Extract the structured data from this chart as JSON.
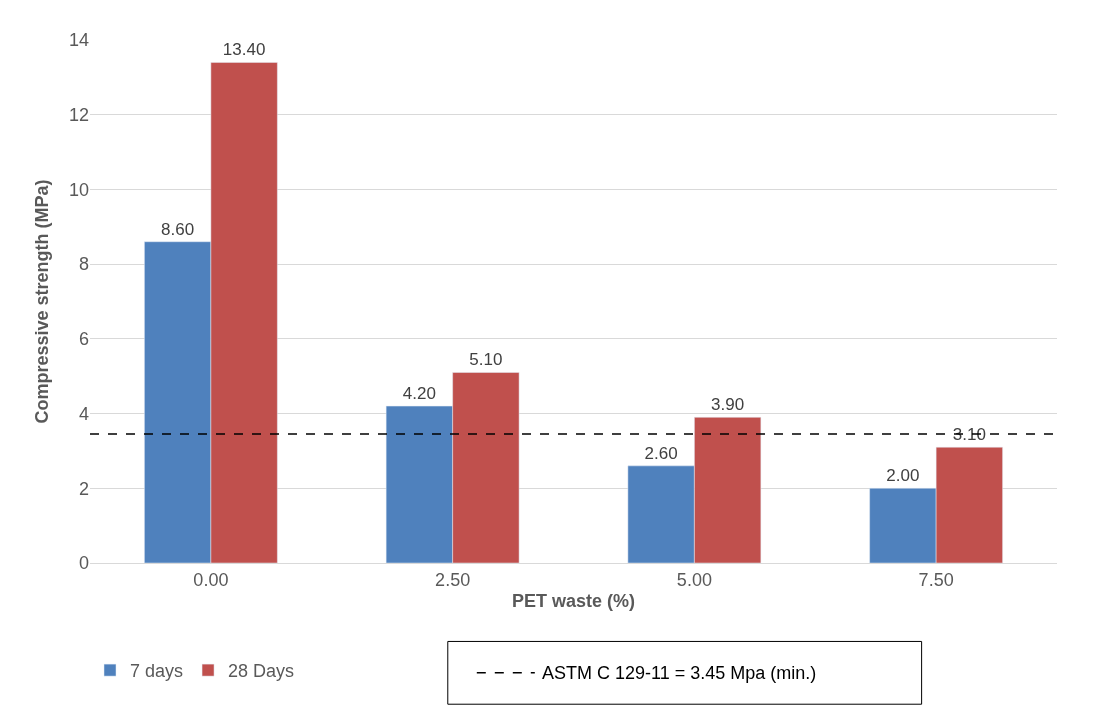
{
  "chart_data": {
    "type": "bar",
    "xlabel": "PET waste (%)",
    "ylabel": "Compressive strength (MPa)",
    "categories": [
      "0.00",
      "2.50",
      "5.00",
      "7.50"
    ],
    "series": [
      {
        "name": "7 days",
        "color": "#4f81bd",
        "values": [
          8.6,
          4.2,
          2.6,
          2.0
        ],
        "value_labels": [
          "8.60",
          "4.20",
          "2.60",
          "2.00"
        ]
      },
      {
        "name": "28 Days",
        "color": "#c0504d",
        "values": [
          13.4,
          5.1,
          3.9,
          3.1
        ],
        "value_labels": [
          "13.40",
          "5.10",
          "3.90",
          "3.10"
        ]
      }
    ],
    "ylim": [
      0,
      14
    ],
    "yticks": [
      0,
      2,
      4,
      6,
      8,
      10,
      12,
      14
    ],
    "grid": "y",
    "legend": "bottom left",
    "ref_lines": [
      {
        "axis": "y",
        "value": 3.45,
        "label": "ASTM C 129-11 = 3.45 Mpa (min.)",
        "color": "#000000",
        "line_style": "dashed"
      }
    ]
  }
}
